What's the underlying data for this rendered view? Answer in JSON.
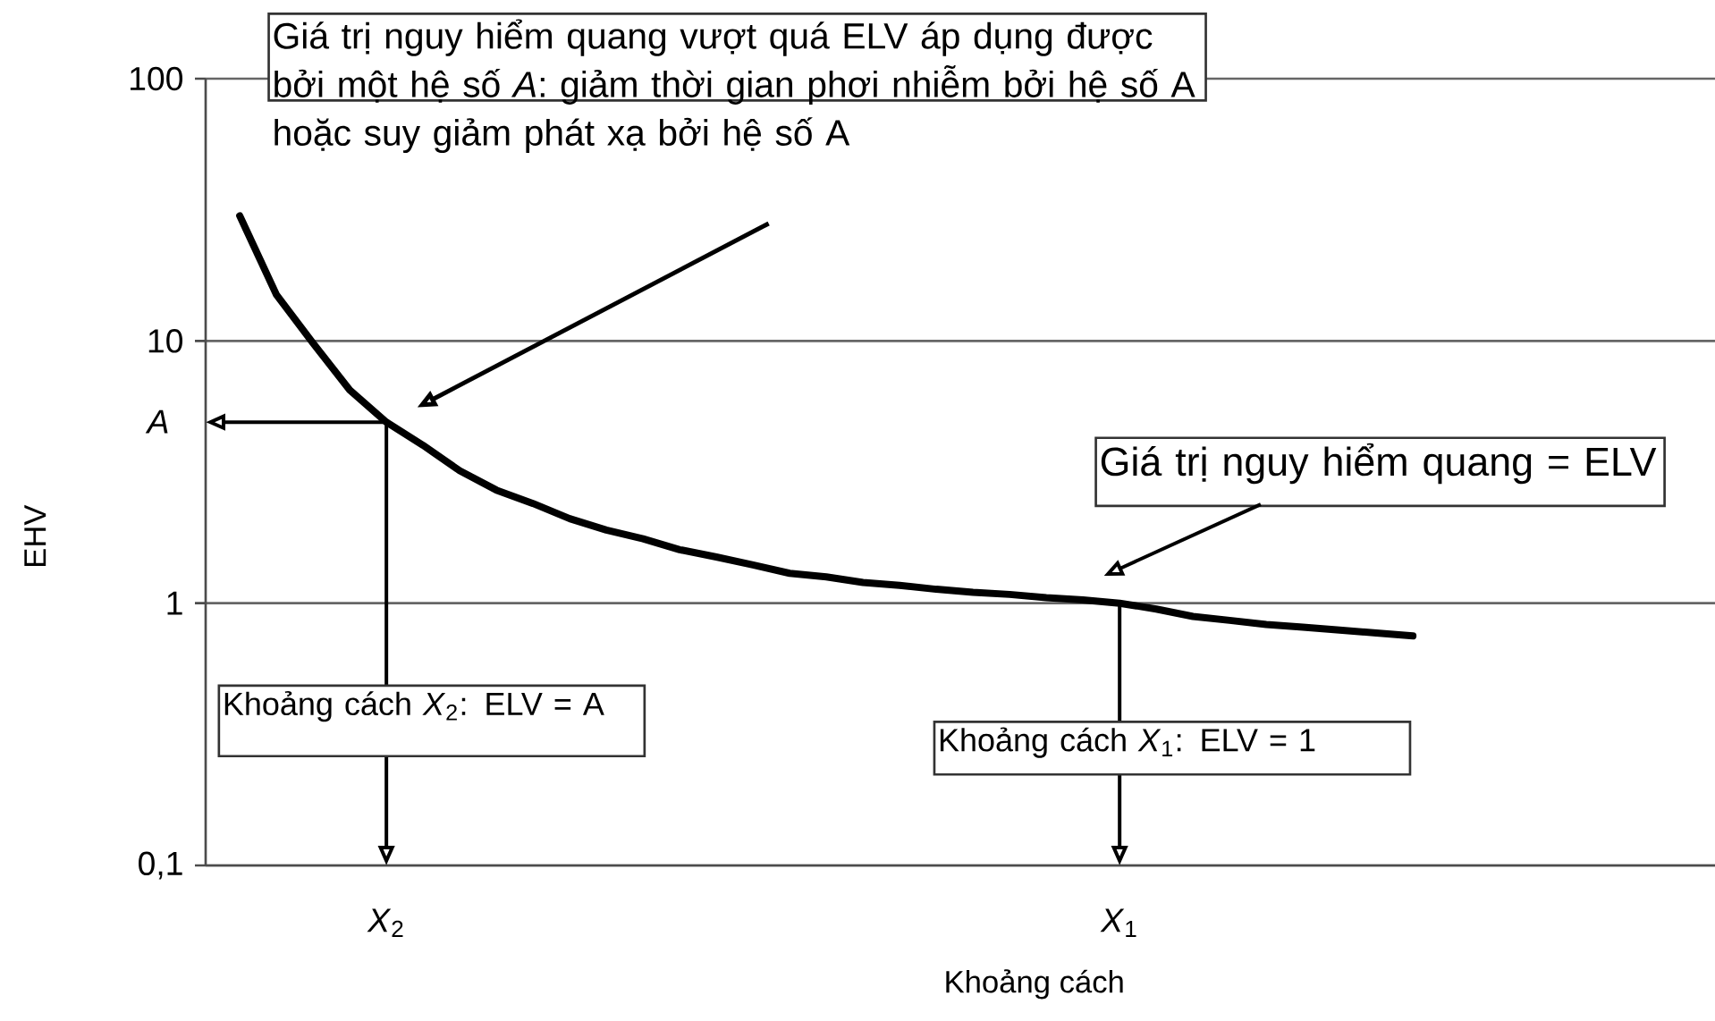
{
  "chart_data": {
    "type": "line",
    "xlabel": "Khoảng cách",
    "ylabel": "EHV",
    "log": "y",
    "grid": "y",
    "marker": "none",
    "line_style": "solid",
    "categories": [
      null,
      null,
      null,
      null,
      "*X*$_{2}$",
      null,
      null,
      null,
      null,
      null,
      null,
      null,
      null,
      null,
      null,
      null,
      null,
      null,
      null,
      null,
      null,
      null,
      null,
      null,
      "*X*$_{1}$",
      null,
      null,
      null,
      null,
      null,
      null,
      null,
      null
    ],
    "series": [
      {
        "color": "#000000",
        "values": [
          30,
          15,
          9.8,
          6.5,
          4.9,
          4.0,
          3.2,
          2.7,
          2.4,
          2.1,
          1.9,
          1.76,
          1.6,
          1.5,
          1.4,
          1.3,
          1.26,
          1.2,
          1.17,
          1.13,
          1.1,
          1.08,
          1.05,
          1.03,
          1.0,
          0.95,
          0.89,
          0.86,
          0.83,
          0.81,
          0.79,
          0.77,
          0.75
        ]
      }
    ],
    "ylim": [
      0.1,
      100
    ],
    "yticks": [
      {
        "value": 0.1,
        "label": "0,1"
      },
      1,
      10,
      100
    ],
    "annotations": [
      "Giá trị nguy hiểm quang vượt quá ELV áp dụng được bởi một hệ số *A*: giảm thời gian phơi nhiễm bởi hệ số A hoặc suy giảm phát xạ bởi hệ số A",
      "Giá trị nguy hiểm quang = ELV",
      "Khoảng cách *X*$_{2}$: ELV = A",
      "Khoảng cách *X*$_{1}$: ELV = 1",
      "*A*"
    ]
  }
}
